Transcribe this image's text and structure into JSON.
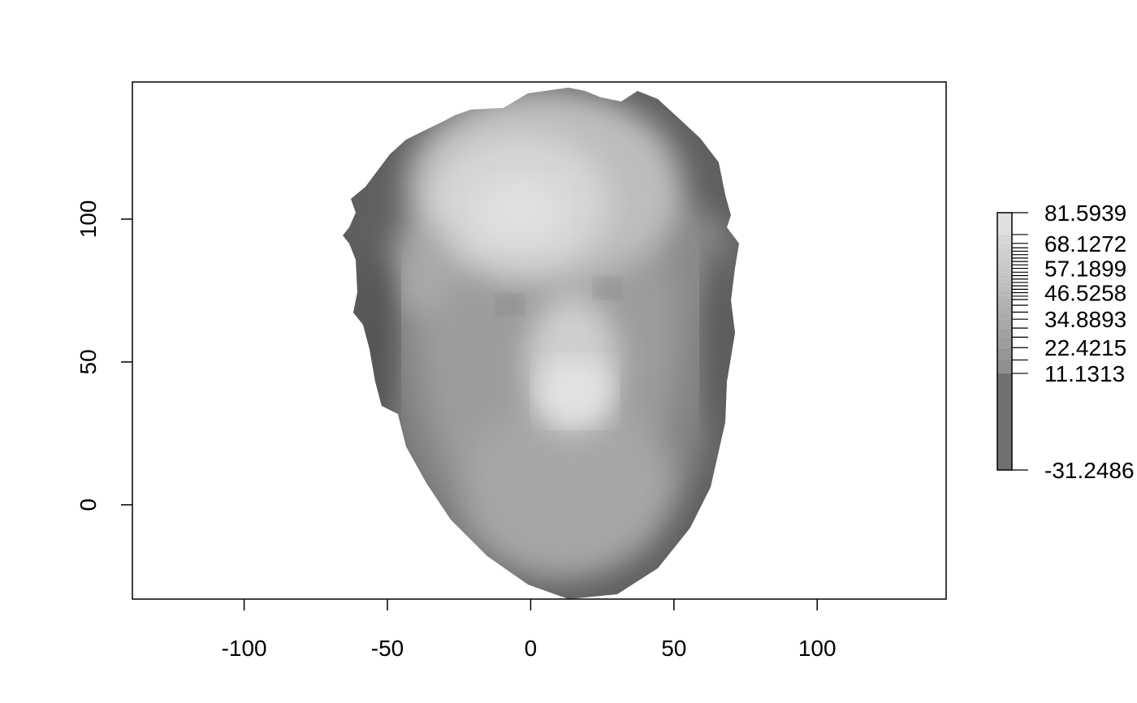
{
  "chart_data": {
    "type": "heatmap",
    "description_kind": "filled contour image of a face depth map",
    "title": "",
    "xlabel": "",
    "ylabel": "",
    "xlim": [
      -139,
      145
    ],
    "ylim": [
      -33,
      148
    ],
    "x_ticks": [
      -100,
      -50,
      0,
      50,
      100
    ],
    "x_tick_labels": [
      "-100",
      "-50",
      "0",
      "50",
      "100"
    ],
    "y_ticks": [
      0,
      50,
      100
    ],
    "y_tick_labels": [
      "0",
      "50",
      "100"
    ],
    "grid": false,
    "colorscale": "grayscale",
    "value_range": [
      -31.2486,
      81.5939
    ],
    "legend_position": "right",
    "legend_labels": [
      {
        "value": 81.5939,
        "label": "81.5939"
      },
      {
        "value": 68.1272,
        "label": "68.1272"
      },
      {
        "value": 57.1899,
        "label": "57.1899"
      },
      {
        "value": 46.5258,
        "label": "46.5258"
      },
      {
        "value": 34.8893,
        "label": "34.8893"
      },
      {
        "value": 22.4215,
        "label": "22.4215"
      },
      {
        "value": 11.1313,
        "label": "11.1313"
      },
      {
        "value": -31.2486,
        "label": "-31.2486"
      }
    ],
    "legend_breaks": [
      -31.2486,
      11.1313,
      17.0,
      22.4215,
      27.0,
      31.0,
      34.8893,
      38.0,
      41.0,
      43.5,
      45.0,
      46.5258,
      48.0,
      49.5,
      51.0,
      52.5,
      54.0,
      55.5,
      57.1899,
      58.7,
      60.2,
      61.7,
      63.2,
      64.7,
      66.2,
      68.1272,
      72.0,
      81.5939
    ],
    "surface": {
      "face_center": [
        15,
        55
      ],
      "x_extent": [
        -66,
        73
      ],
      "y_extent": [
        -33,
        148
      ],
      "features": [
        {
          "name": "forehead",
          "x": -5,
          "y": 100,
          "value": 75
        },
        {
          "name": "nose-tip",
          "x": 17,
          "y": 38,
          "value": 81
        },
        {
          "name": "left-eye",
          "x": -7,
          "y": 70,
          "value": 40
        },
        {
          "name": "right-eye",
          "x": 27,
          "y": 75,
          "value": 40
        },
        {
          "name": "chin",
          "x": 22,
          "y": -15,
          "value": 52
        }
      ]
    }
  }
}
